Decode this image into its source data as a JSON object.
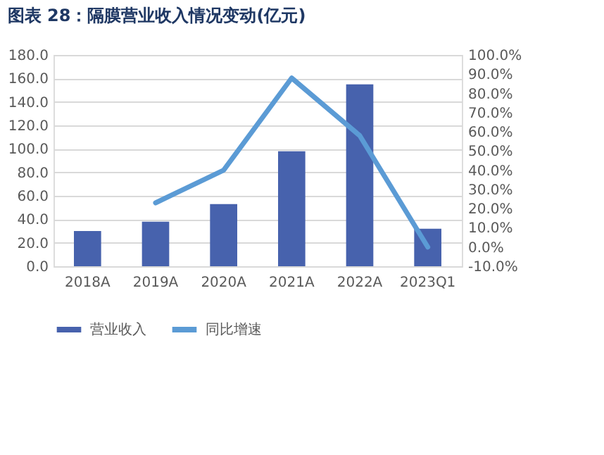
{
  "chart_data": {
    "type": "bar",
    "title": "图表 28：隔膜营业收入情况变动(亿元)",
    "categories": [
      "2018A",
      "2019A",
      "2020A",
      "2021A",
      "2022A",
      "2023Q1"
    ],
    "series": [
      {
        "name": "营业收入",
        "color": "#4762ad",
        "values": [
          30,
          38,
          53,
          98,
          155,
          32
        ]
      },
      {
        "name": "同比增速",
        "type": "line",
        "axis": "y2",
        "color": "#5b9bd5",
        "values": [
          null,
          23,
          40,
          88,
          58,
          0
        ]
      }
    ],
    "ylim": [
      0,
      180
    ],
    "yticks": [
      {
        "value": 0,
        "label": "0.0"
      },
      {
        "value": 20,
        "label": "20.0"
      },
      {
        "value": 40,
        "label": "40.0"
      },
      {
        "value": 60,
        "label": "60.0"
      },
      {
        "value": 80,
        "label": "80.0"
      },
      {
        "value": 100,
        "label": "100.0"
      },
      {
        "value": 120,
        "label": "120.0"
      },
      {
        "value": 140,
        "label": "140.0"
      },
      {
        "value": 160,
        "label": "160.0"
      },
      {
        "value": 180,
        "label": "180.0"
      }
    ],
    "y2lim": [
      -10,
      100
    ],
    "y2ticks": [
      {
        "value": -10,
        "label": "-10.0%"
      },
      {
        "value": 0,
        "label": "0.0%"
      },
      {
        "value": 10,
        "label": "10.0%"
      },
      {
        "value": 20,
        "label": "20.0%"
      },
      {
        "value": 30,
        "label": "30.0%"
      },
      {
        "value": 40,
        "label": "40.0%"
      },
      {
        "value": 50,
        "label": "50.0%"
      },
      {
        "value": 60,
        "label": "60.0%"
      },
      {
        "value": 70,
        "label": "70.0%"
      },
      {
        "value": 80,
        "label": "80.0%"
      },
      {
        "value": 90,
        "label": "90.0%"
      },
      {
        "value": 100,
        "label": "100.0%"
      }
    ],
    "grid": "y",
    "legend": "bottom"
  }
}
